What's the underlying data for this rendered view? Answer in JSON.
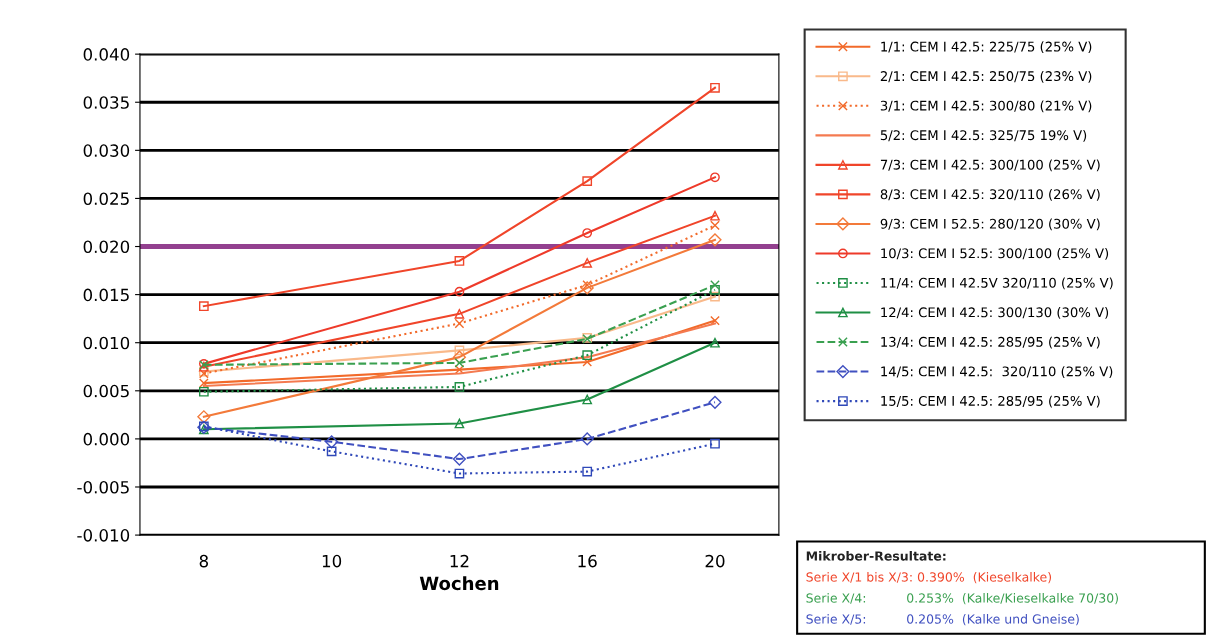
{
  "chart_data": {
    "type": "line",
    "xlabel": "Wochen",
    "categories": [
      "8",
      "10",
      "12",
      "16",
      "20"
    ],
    "ylim": [
      -0.01,
      0.04
    ],
    "yticks": [
      {
        "value": -0.01,
        "label": "-0.010"
      },
      {
        "value": -0.005,
        "label": "-0.005"
      },
      {
        "value": 0.0,
        "label": "0.000"
      },
      {
        "value": 0.005,
        "label": "0.005"
      },
      {
        "value": 0.01,
        "label": "0.010"
      },
      {
        "value": 0.015,
        "label": "0.015"
      },
      {
        "value": 0.02,
        "label": "0.020"
      },
      {
        "value": 0.025,
        "label": "0.025"
      },
      {
        "value": 0.03,
        "label": "0.030"
      },
      {
        "value": 0.035,
        "label": "0.035"
      },
      {
        "value": 0.04,
        "label": "0.040"
      }
    ],
    "grid": "y",
    "legend": "right",
    "ref_lines": [
      {
        "axis": "y",
        "value": 0.02,
        "label": null,
        "color": "#93408f"
      }
    ],
    "series": [
      {
        "name": "1/1: CEM I 42.5: 225/75 (25% V)",
        "color": "#f26a2a",
        "marker": "cross",
        "line_style": "solid",
        "values": [
          0.0058,
          null,
          0.0072,
          0.008,
          0.0123
        ]
      },
      {
        "name": "2/1: CEM I 42.5: 250/75 (23% V)",
        "color": "#f9b98a",
        "marker": "square",
        "line_style": "solid",
        "values": [
          0.007,
          null,
          0.0092,
          0.0105,
          0.0148
        ]
      },
      {
        "name": "3/1: CEM I 42.5: 300/80 (21% V)",
        "color": "#f26a2a",
        "marker": "cross",
        "line_style": "dotted",
        "values": [
          0.0068,
          null,
          0.012,
          0.016,
          0.0222
        ]
      },
      {
        "name": "5/2: CEM I 42.5: 325/75 19% V)",
        "color": "#f47a50",
        "marker": "none",
        "line_style": "solid",
        "values": [
          0.0055,
          null,
          0.0068,
          0.0085,
          0.012
        ]
      },
      {
        "name": "7/3: CEM I 42.5: 300/100 (25% V)",
        "color": "#f0452a",
        "marker": "triangle",
        "line_style": "solid",
        "values": [
          0.0075,
          null,
          0.013,
          0.0183,
          0.0232
        ]
      },
      {
        "name": "8/3: CEM I 42.5: 320/110 (26% V)",
        "color": "#f0452a",
        "marker": "square",
        "line_style": "solid",
        "values": [
          0.0138,
          null,
          0.0185,
          0.0268,
          0.0365
        ]
      },
      {
        "name": "9/3: CEM I 52.5: 280/120 (30% V)",
        "color": "#f37a3a",
        "marker": "diamond",
        "line_style": "solid",
        "values": [
          0.0023,
          null,
          0.0085,
          0.0157,
          0.0207
        ]
      },
      {
        "name": "10/3: CEM I 52.5: 300/100 (25% V)",
        "color": "#ee3a2a",
        "marker": "circle",
        "line_style": "solid",
        "values": [
          0.0078,
          null,
          0.0153,
          0.0214,
          0.0272
        ]
      },
      {
        "name": "11/4: CEM I 42.5V 320/110 (25% V)",
        "color": "#1f8f45",
        "marker": "square",
        "line_style": "dotted",
        "values": [
          0.0049,
          null,
          0.0054,
          0.0087,
          0.0155
        ]
      },
      {
        "name": "12/4: CEM I 42.5: 300/130 (30% V)",
        "color": "#1f8f45",
        "marker": "triangle",
        "line_style": "solid",
        "values": [
          0.001,
          null,
          0.0016,
          0.0041,
          0.01
        ]
      },
      {
        "name": "13/4: CEM I 42.5: 285/95 (25% V)",
        "color": "#3aa050",
        "marker": "cross",
        "line_style": "dashed",
        "values": [
          0.0077,
          null,
          0.0079,
          0.0104,
          0.016
        ]
      },
      {
        "name": "14/5: CEM I 42.5:  320/110 (25% V)",
        "color": "#4050c0",
        "marker": "diamond",
        "line_style": "dashed",
        "values": [
          0.0012,
          -0.0003,
          -0.0021,
          0.0,
          0.0038
        ]
      },
      {
        "name": "15/5: CEM I 42.5: 285/95 (25% V)",
        "color": "#2f48b8",
        "marker": "square",
        "line_style": "dotted",
        "values": [
          0.0013,
          -0.0013,
          -0.0036,
          -0.0034,
          -0.0005
        ]
      }
    ],
    "annotations": [
      "Mikrober-Resultate:",
      "Serie X/1 bis X/3: 0.390%  (Kieselkalke)",
      "Serie X/4:          0.253%  (Kalke/Kieselkalke 70/30)",
      "Serie X/5:          0.205%  (Kalke und Gneise)"
    ]
  }
}
